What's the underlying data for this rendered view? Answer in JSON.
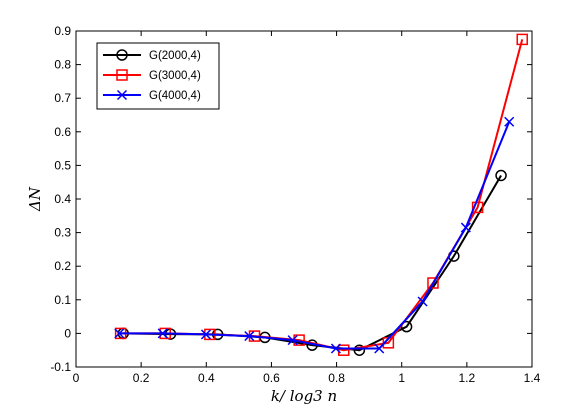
{
  "chart_data": {
    "type": "line",
    "title": "",
    "xlabel": "k/ log3 n",
    "ylabel": "ΔN",
    "xlim": [
      0,
      1.4
    ],
    "ylim": [
      -0.1,
      0.9
    ],
    "xticks": [
      "0",
      "0.2",
      "0.4",
      "0.6",
      "0.8",
      "1",
      "1.2",
      "1.4"
    ],
    "yticks": [
      "-0.1",
      "0",
      "0.1",
      "0.2",
      "0.3",
      "0.4",
      "0.5",
      "0.6",
      "0.7",
      "0.8",
      "0.9"
    ],
    "grid": false,
    "legend_position": "top-left",
    "series": [
      {
        "name": "G(2000,4)",
        "color": "#000000",
        "marker": "circle",
        "x": [
          0.145,
          0.29,
          0.435,
          0.58,
          0.725,
          0.87,
          1.015,
          1.16,
          1.305
        ],
        "y": [
          0.0,
          -0.002,
          -0.003,
          -0.012,
          -0.035,
          -0.05,
          0.02,
          0.23,
          0.47
        ]
      },
      {
        "name": "G(3000,4)",
        "color": "#ff0000",
        "marker": "square",
        "x": [
          0.137,
          0.274,
          0.411,
          0.548,
          0.685,
          0.822,
          0.959,
          1.096,
          1.233,
          1.37
        ],
        "y": [
          0.0,
          0.0,
          -0.003,
          -0.008,
          -0.02,
          -0.05,
          -0.028,
          0.15,
          0.375,
          0.875
        ]
      },
      {
        "name": "G(4000,4)",
        "color": "#0000ff",
        "marker": "x",
        "x": [
          0.133,
          0.266,
          0.399,
          0.532,
          0.665,
          0.798,
          0.931,
          1.064,
          1.197,
          1.33
        ],
        "y": [
          0.0,
          0.0,
          -0.003,
          -0.008,
          -0.02,
          -0.045,
          -0.045,
          0.095,
          0.315,
          0.63
        ]
      }
    ]
  }
}
